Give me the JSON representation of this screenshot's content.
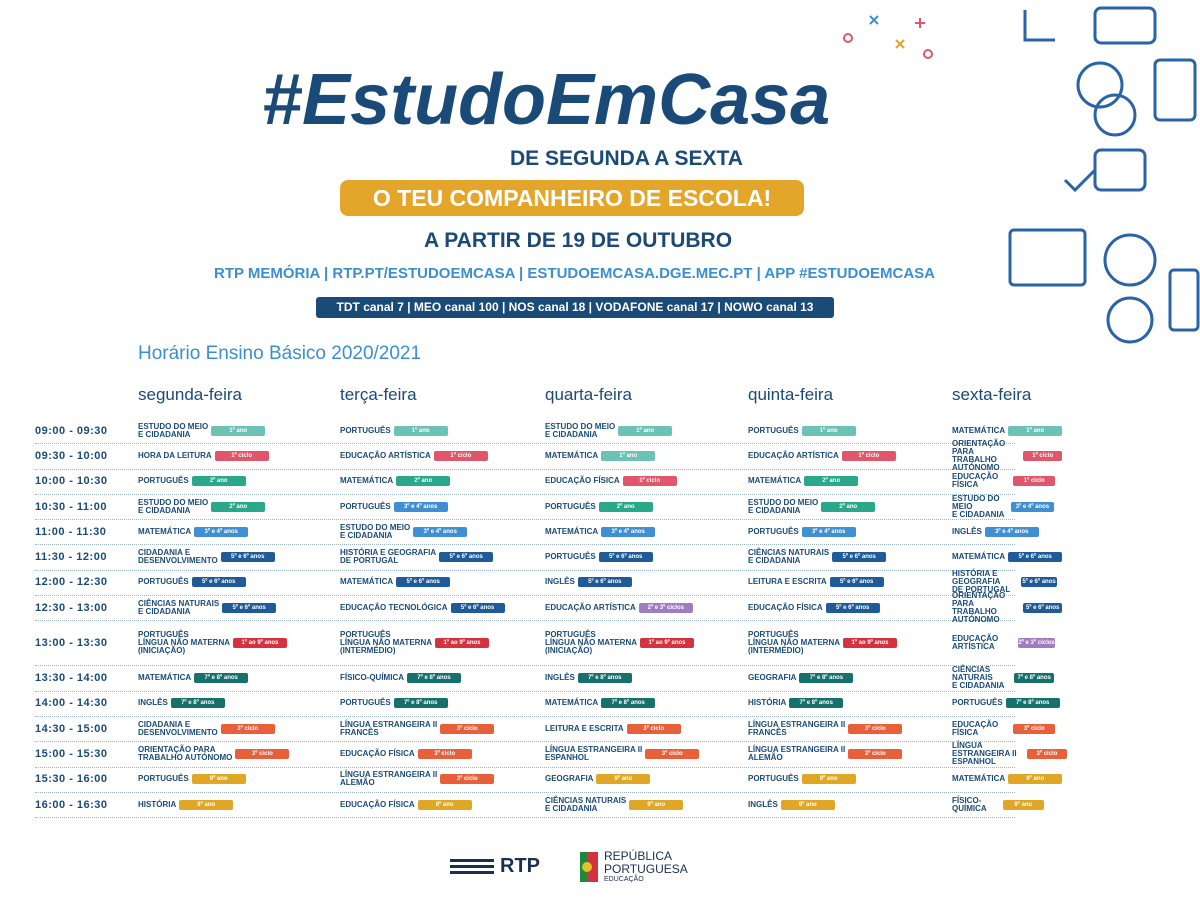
{
  "header": {
    "title": "#EstudoEmCasa",
    "subtitle": "DE SEGUNDA A SEXTA",
    "tagline": "O TEU COMPANHEIRO DE ESCOLA!",
    "start": "A PARTIR DE 19 DE OUTUBRO",
    "links": "RTP MEMÓRIA | RTP.PT/ESTUDOEMCASA | ESTUDOEMCASA.DGE.MEC.PT | APP #ESTUDOEMCASA",
    "channels": "TDT canal 7 | MEO canal 100 | NOS canal 18 | VODAFONE canal 17 | NOWO canal 13"
  },
  "schedule_title": "Horário  Ensino Básico 2020/2021",
  "days": [
    "segunda-feira",
    "terça-feira",
    "quarta-feira",
    "quinta-feira",
    "sexta-feira"
  ],
  "levels": {
    "a1": {
      "label": "1º ano",
      "color": "#6cc3b5"
    },
    "c1": {
      "label": "1º ciclo",
      "color": "#e0566a"
    },
    "a2": {
      "label": "2º ano",
      "color": "#2aa889"
    },
    "a34": {
      "label": "3º e 4º anos",
      "color": "#3f8fd2"
    },
    "a56": {
      "label": "5º e 6º anos",
      "color": "#1f5b99"
    },
    "a19": {
      "label": "1º ao 9º anos",
      "color": "#d5323f"
    },
    "a78": {
      "label": "7º e 8º anos",
      "color": "#16706b"
    },
    "c3": {
      "label": "3º ciclo",
      "color": "#e8603a"
    },
    "c23": {
      "label": "2º e 3º ciclos",
      "color": "#a07cc0"
    },
    "a9": {
      "label": "9º ano",
      "color": "#e0a726"
    }
  },
  "rows": [
    {
      "time": "09:00 - 09:30",
      "cells": [
        [
          "ESTUDO DO MEIO\nE CIDADANIA",
          "a1"
        ],
        [
          "PORTUGUÊS",
          "a1"
        ],
        [
          "ESTUDO DO MEIO\nE CIDADANIA",
          "a1"
        ],
        [
          "PORTUGUÊS",
          "a1"
        ],
        [
          "MATEMÁTICA",
          "a1"
        ]
      ]
    },
    {
      "time": "09:30 - 10:00",
      "cells": [
        [
          "HORA DA LEITURA",
          "c1"
        ],
        [
          "EDUCAÇÃO ARTÍSTICA",
          "c1"
        ],
        [
          "MATEMÁTICA",
          "a1"
        ],
        [
          "EDUCAÇÃO ARTÍSTICA",
          "c1"
        ],
        [
          "ORIENTAÇÃO PARA\nTRABALHO AUTÓNOMO",
          "c1"
        ]
      ]
    },
    {
      "time": "10:00 - 10:30",
      "cells": [
        [
          "PORTUGUÊS",
          "a2"
        ],
        [
          "MATEMÁTICA",
          "a2"
        ],
        [
          "EDUCAÇÃO FÍSICA",
          "c1"
        ],
        [
          "MATEMÁTICA",
          "a2"
        ],
        [
          "EDUCAÇÃO FÍSICA",
          "c1"
        ]
      ]
    },
    {
      "time": "10:30 - 11:00",
      "cells": [
        [
          "ESTUDO DO MEIO\nE CIDADANIA",
          "a2"
        ],
        [
          "PORTUGUÊS",
          "a34"
        ],
        [
          "PORTUGUÊS",
          "a2"
        ],
        [
          "ESTUDO DO MEIO\nE CIDADANIA",
          "a2"
        ],
        [
          "ESTUDO DO MEIO\nE CIDADANIA",
          "a34"
        ]
      ]
    },
    {
      "time": "11:00 - 11:30",
      "cells": [
        [
          "MATEMÁTICA",
          "a34"
        ],
        [
          "ESTUDO DO MEIO\nE CIDADANIA",
          "a34"
        ],
        [
          "MATEMÁTICA",
          "a34"
        ],
        [
          "PORTUGUÊS",
          "a34"
        ],
        [
          "INGLÊS",
          "a34"
        ]
      ]
    },
    {
      "time": "11:30 - 12:00",
      "cells": [
        [
          "CIDADANIA E\nDESENVOLVIMENTO",
          "a56"
        ],
        [
          "HISTÓRIA E GEOGRAFIA\nDE PORTUGAL",
          "a56"
        ],
        [
          "PORTUGUÊS",
          "a56"
        ],
        [
          "CIÊNCIAS NATURAIS\nE CIDADANIA",
          "a56"
        ],
        [
          "MATEMÁTICA",
          "a56"
        ]
      ]
    },
    {
      "time": "12:00 - 12:30",
      "cells": [
        [
          "PORTUGUÊS",
          "a56"
        ],
        [
          "MATEMÁTICA",
          "a56"
        ],
        [
          "INGLÊS",
          "a56"
        ],
        [
          "LEITURA E ESCRITA",
          "a56"
        ],
        [
          "HISTÓRIA E GEOGRAFIA\nDE PORTUGAL",
          "a56"
        ]
      ]
    },
    {
      "time": "12:30 - 13:00",
      "cells": [
        [
          "CIÊNCIAS NATURAIS\nE CIDADANIA",
          "a56"
        ],
        [
          "EDUCAÇÃO TECNOLÓGICA",
          "a56"
        ],
        [
          "EDUCAÇÃO ARTÍSTICA",
          "c23"
        ],
        [
          "EDUCAÇÃO FÍSICA",
          "a56"
        ],
        [
          "ORIENTAÇÃO PARA\nTRABALHO AUTÓNOMO",
          "a56"
        ]
      ]
    },
    {
      "time": "13:00 - 13:30",
      "cells": [
        [
          "PORTUGUÊS\nLÍNGUA NÃO MATERNA\n(INICIAÇÃO)",
          "a19"
        ],
        [
          "PORTUGUÊS\nLÍNGUA NÃO MATERNA\n(INTERMÉDIO)",
          "a19"
        ],
        [
          "PORTUGUÊS\nLÍNGUA NÃO MATERNA\n(INICIAÇÃO)",
          "a19"
        ],
        [
          "PORTUGUÊS\nLÍNGUA NÃO MATERNA\n(INTERMÉDIO)",
          "a19"
        ],
        [
          "EDUCAÇÃO ARTÍSTICA",
          "c23"
        ]
      ]
    },
    {
      "time": "13:30 - 14:00",
      "cells": [
        [
          "MATEMÁTICA",
          "a78"
        ],
        [
          "FÍSICO-QUÍMICA",
          "a78"
        ],
        [
          "INGLÊS",
          "a78"
        ],
        [
          "GEOGRAFIA",
          "a78"
        ],
        [
          "CIÊNCIAS NATURAIS\nE CIDADANIA",
          "a78"
        ]
      ]
    },
    {
      "time": "14:00 - 14:30",
      "cells": [
        [
          "INGLÊS",
          "a78"
        ],
        [
          "PORTUGUÊS",
          "a78"
        ],
        [
          "MATEMÁTICA",
          "a78"
        ],
        [
          "HISTÓRIA",
          "a78"
        ],
        [
          "PORTUGUÊS",
          "a78"
        ]
      ]
    },
    {
      "time": "14:30 - 15:00",
      "cells": [
        [
          "CIDADANIA E\nDESENVOLVIMENTO",
          "c3"
        ],
        [
          "LÍNGUA ESTRANGEIRA II\nFRANCÊS",
          "c3"
        ],
        [
          "LEITURA E ESCRITA",
          "c3"
        ],
        [
          "LÍNGUA ESTRANGEIRA II\nFRANCÊS",
          "c3"
        ],
        [
          "EDUCAÇÃO FÍSICA",
          "c3"
        ]
      ]
    },
    {
      "time": "15:00 - 15:30",
      "cells": [
        [
          "ORIENTAÇÃO PARA\nTRABALHO AUTÓNOMO",
          "c3"
        ],
        [
          "EDUCAÇÃO FÍSICA",
          "c3"
        ],
        [
          "LÍNGUA ESTRANGEIRA II\nESPANHOL",
          "c3"
        ],
        [
          "LÍNGUA ESTRANGEIRA II\nALEMÃO",
          "c3"
        ],
        [
          "LÍNGUA ESTRANGEIRA II\nESPANHOL",
          "c3"
        ]
      ]
    },
    {
      "time": "15:30 - 16:00",
      "cells": [
        [
          "PORTUGUÊS",
          "a9"
        ],
        [
          "LÍNGUA ESTRANGEIRA II\nALEMÃO",
          "c3"
        ],
        [
          "GEOGRAFIA",
          "a9"
        ],
        [
          "PORTUGUÊS",
          "a9"
        ],
        [
          "MATEMÁTICA",
          "a9"
        ]
      ]
    },
    {
      "time": "16:00 - 16:30",
      "cells": [
        [
          "HISTÓRIA",
          "a9"
        ],
        [
          "EDUCAÇÃO FÍSICA",
          "a9"
        ],
        [
          "CIÊNCIAS NATURAIS\nE CIDADANIA",
          "a9"
        ],
        [
          "INGLÊS",
          "a9"
        ],
        [
          "FÍSICO-QUÍMICA",
          "a9"
        ]
      ]
    }
  ],
  "footer": {
    "rtp": "RTP",
    "republica": "REPÚBLICA\nPORTUGUESA",
    "educacao": "EDUCAÇÃO"
  }
}
